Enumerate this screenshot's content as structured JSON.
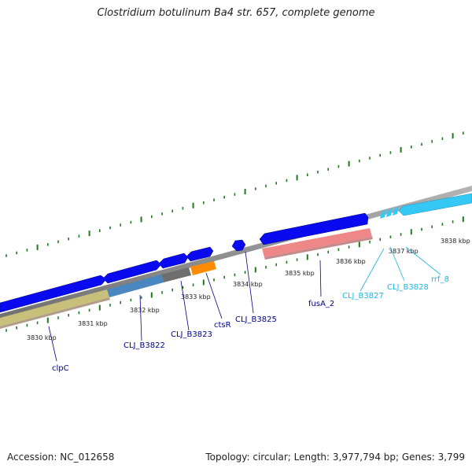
{
  "title": "Clostridium botulinum Ba4 str. 657, complete genome",
  "footer": {
    "accession": "Accession: NC_012658",
    "topology": "Topology: circular; Length: 3,977,794 bp; Genes: 3,799"
  },
  "kbp_labels": [
    "3830 kbp",
    "3831 kbp",
    "3832 kbp",
    "3833 kbp",
    "3834 kbp",
    "3835 kbp",
    "3836 kbp",
    "3837 kbp",
    "3838 kbp"
  ],
  "gene_labels": [
    {
      "id": "clpC",
      "label": "clpC",
      "color": "#00008b"
    },
    {
      "id": "clj-b3822",
      "label": "CLJ_B3822",
      "color": "#00008b"
    },
    {
      "id": "clj-b3823",
      "label": "CLJ_B3823",
      "color": "#00008b"
    },
    {
      "id": "ctsr",
      "label": "ctsR",
      "color": "#00008b"
    },
    {
      "id": "clj-b3825",
      "label": "CLJ_B3825",
      "color": "#00008b"
    },
    {
      "id": "fusa-2",
      "label": "fusA_2",
      "color": "#00008b"
    },
    {
      "id": "clj-b3827",
      "label": "CLJ_B3827",
      "color": "#1fb8e0"
    },
    {
      "id": "clj-b3828",
      "label": "CLJ_B3828",
      "color": "#1fb8e0"
    },
    {
      "id": "rrf-8",
      "label": "rrf_8",
      "color": "#1fb8e0"
    }
  ],
  "colors": {
    "backbone": "#8c8c8c",
    "cds_forward": "#0a0af0",
    "cds_light": "#36c8f4",
    "rrna": "#ee8888",
    "gene_clpC": "#c8c07a",
    "gene_b3822": "#4a86c0",
    "gene_b3823": "#6e6e6e",
    "gene_ctsR": "#ff8c00",
    "ticks": "#1e7a1e"
  }
}
